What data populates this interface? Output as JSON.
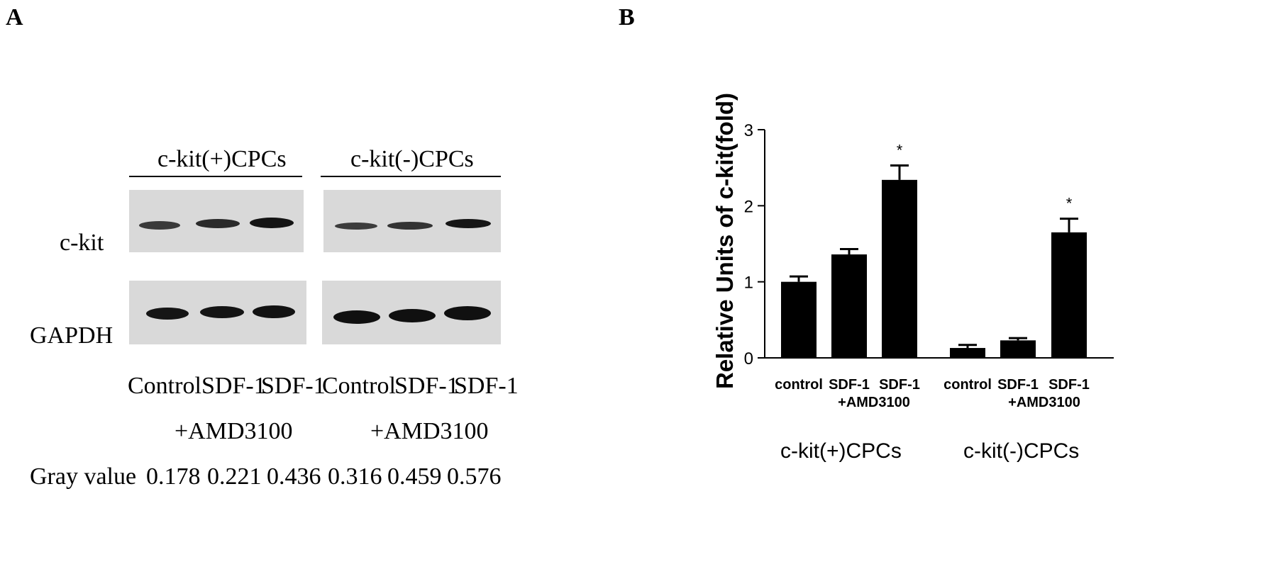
{
  "panel_a": {
    "letter": "A",
    "groups": [
      "c-kit(+)CPCs",
      "c-kit(-)CPCs"
    ],
    "row_labels": [
      "c-kit",
      "GAPDH"
    ],
    "lanes_line1": [
      "Control",
      "SDF-1",
      "SDF-1",
      "Control",
      "SDF-1",
      "SDF-1"
    ],
    "lanes_line2": [
      "+AMD3100",
      "+AMD3100"
    ],
    "gray_label": "Gray value",
    "gray_values": [
      "0.178",
      "0.221",
      "0.436",
      "0.316",
      "0.459",
      "0.576"
    ],
    "blot_tone": "#d9d9d9",
    "band_color": "#1a1a1a"
  },
  "panel_b": {
    "letter": "B",
    "group_labels": [
      "c-kit(+)CPCs",
      "c-kit(-)CPCs"
    ]
  },
  "chart_data": {
    "type": "bar",
    "ylabel": "Relative Units of c-kit(fold)",
    "ylim": [
      0,
      3
    ],
    "yticks": [
      "0",
      "1",
      "2",
      "3"
    ],
    "categories": [
      "control",
      "SDF-1",
      "SDF-1\n+AMD3100",
      "control",
      "SDF-1",
      "SDF-1\n+AMD3100"
    ],
    "cat_line1": [
      "control",
      "SDF-1",
      "SDF-1",
      "control",
      "SDF-1",
      "SDF-1"
    ],
    "cat_line2": [
      "+AMD3100",
      "+AMD3100"
    ],
    "values": [
      1.0,
      1.36,
      2.34,
      0.13,
      0.23,
      1.65
    ],
    "errors": [
      0.07,
      0.07,
      0.19,
      0.04,
      0.03,
      0.18
    ],
    "significance": [
      "",
      "",
      "*",
      "",
      "",
      "*"
    ],
    "bar_color": "#000000",
    "grid": false,
    "legend": "none"
  }
}
